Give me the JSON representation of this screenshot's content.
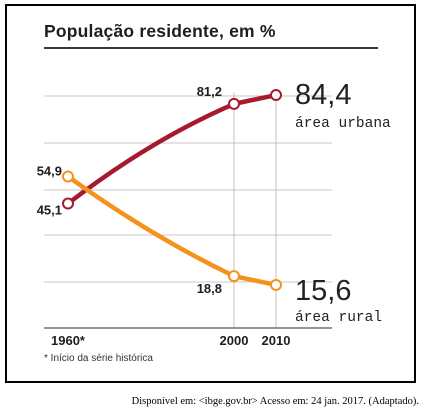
{
  "colors": {
    "urban": "#a51a2e",
    "rural": "#f4921e",
    "grid": "#b5b5b5",
    "text": "#1e1e1e"
  },
  "chart_data": {
    "type": "line",
    "title": "População residente, em %",
    "x_ticks": [
      "1960*",
      "2000",
      "2010"
    ],
    "ylim": [
      0,
      100
    ],
    "grid": true,
    "series": [
      {
        "name": "área urbana",
        "color": "#a51a2e",
        "x": [
          1960,
          2000,
          2010
        ],
        "y": [
          45.1,
          81.2,
          84.4
        ],
        "point_labels": [
          "45,1",
          "81,2",
          ""
        ],
        "end_label": "84,4"
      },
      {
        "name": "área rural",
        "color": "#f4921e",
        "x": [
          1960,
          2000,
          2010
        ],
        "y": [
          54.9,
          18.8,
          15.6
        ],
        "point_labels": [
          "54,9",
          "18,8",
          ""
        ],
        "end_label": "15,6"
      }
    ],
    "footnote": "* Início da série histórica"
  },
  "source": "Disponível em: <ibge.gov.br> Acesso em: 24 jan. 2017. (Adaptado)."
}
